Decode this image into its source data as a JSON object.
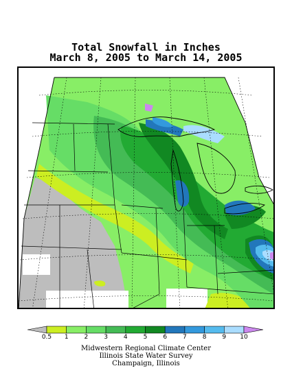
{
  "title": {
    "line1": "Total Snowfall in Inches",
    "line2": "March 8, 2005 to March 14, 2005"
  },
  "legend": {
    "bins": [
      {
        "label": "0.5",
        "color": "#bdbdbd"
      },
      {
        "label": "1",
        "color": "#ccee22"
      },
      {
        "label": "2",
        "color": "#88ee66"
      },
      {
        "label": "3",
        "color": "#66dd66"
      },
      {
        "label": "4",
        "color": "#44bb55"
      },
      {
        "label": "5",
        "color": "#22aa33"
      },
      {
        "label": "6",
        "color": "#118822"
      },
      {
        "label": "7",
        "color": "#2277bb"
      },
      {
        "label": "8",
        "color": "#3399dd"
      },
      {
        "label": "9",
        "color": "#55bbee"
      },
      {
        "label": "10",
        "color": "#aaddff"
      }
    ],
    "overflow_color": "#cc88ee"
  },
  "credits": {
    "line1": "Midwestern Regional Climate Center",
    "line2": "Illinois State Water Survey",
    "line3": "Champaign, Illinois"
  }
}
